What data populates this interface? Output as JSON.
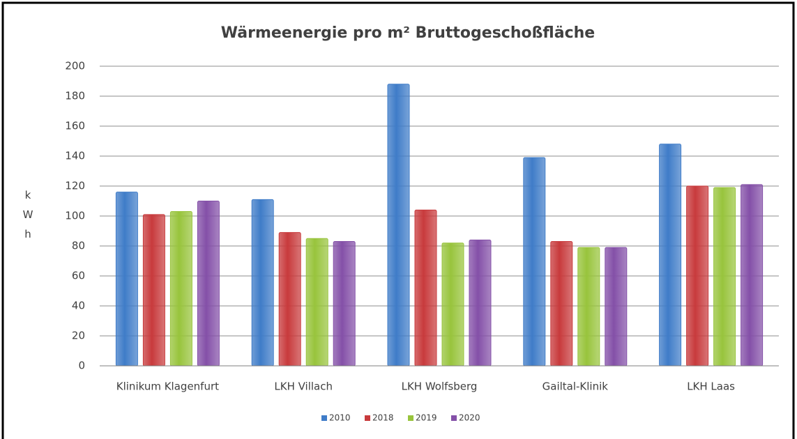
{
  "chart_data": {
    "type": "bar",
    "title": "Wärmeenergie pro m² Bruttogeschoßfläche",
    "y_label": "kWh",
    "categories": [
      "Klinikum Klagenfurt",
      "LKH Villach",
      "LKH Wolfsberg",
      "Gailtal-Klinik",
      "LKH Laas"
    ],
    "series": [
      {
        "name": "2010",
        "color": "#3f7cc8",
        "values": [
          116,
          111,
          188,
          139,
          148
        ]
      },
      {
        "name": "2018",
        "color": "#c83a3c",
        "values": [
          101,
          89,
          104,
          83,
          120
        ]
      },
      {
        "name": "2019",
        "color": "#98c43c",
        "values": [
          103,
          85,
          82,
          79,
          119
        ]
      },
      {
        "name": "2020",
        "color": "#8450a8",
        "values": [
          110,
          83,
          84,
          79,
          121
        ]
      }
    ],
    "ylim": [
      0,
      200
    ],
    "yticks": [
      0,
      20,
      40,
      60,
      80,
      100,
      120,
      140,
      160,
      180,
      200
    ],
    "grid": true,
    "legend": "bottom"
  }
}
